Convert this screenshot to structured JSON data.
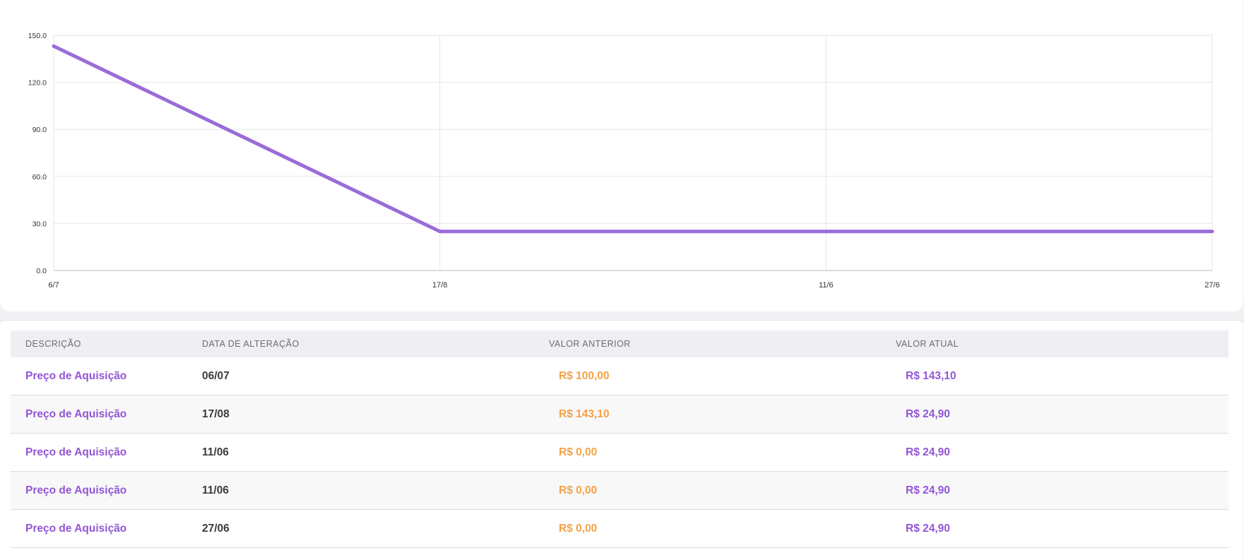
{
  "chart_data": {
    "type": "line",
    "x": [
      "6/7",
      "17/8",
      "11/6",
      "27/6"
    ],
    "series": [
      {
        "values": [
          143.1,
          24.9,
          24.9,
          24.9
        ]
      }
    ],
    "y_ticks": [
      "0.0",
      "30.0",
      "60.0",
      "90.0",
      "120.0",
      "150.0"
    ],
    "ylim": [
      0,
      150
    ],
    "grid": true,
    "line_color": "#9b6bd9"
  },
  "table": {
    "headers": {
      "description": "DESCRIÇÃO",
      "date": "DATA DE ALTERAÇÃO",
      "previous": "VALOR ANTERIOR",
      "current": "VALOR ATUAL"
    },
    "rows": [
      {
        "description": "Preço de Aquisição",
        "date": "06/07",
        "previous": "R$ 100,00",
        "current": "R$ 143,10"
      },
      {
        "description": "Preço de Aquisição",
        "date": "17/08",
        "previous": "R$ 143,10",
        "current": "R$ 24,90"
      },
      {
        "description": "Preço de Aquisição",
        "date": "11/06",
        "previous": "R$ 0,00",
        "current": "R$ 24,90"
      },
      {
        "description": "Preço de Aquisição",
        "date": "11/06",
        "previous": "R$ 0,00",
        "current": "R$ 24,90"
      },
      {
        "description": "Preço de Aquisição",
        "date": "27/06",
        "previous": "R$ 0,00",
        "current": "R$ 24,90"
      }
    ]
  },
  "colors": {
    "accent": "#9156d6",
    "previous_value": "#f5a244",
    "header_bg": "#eeeef3"
  }
}
